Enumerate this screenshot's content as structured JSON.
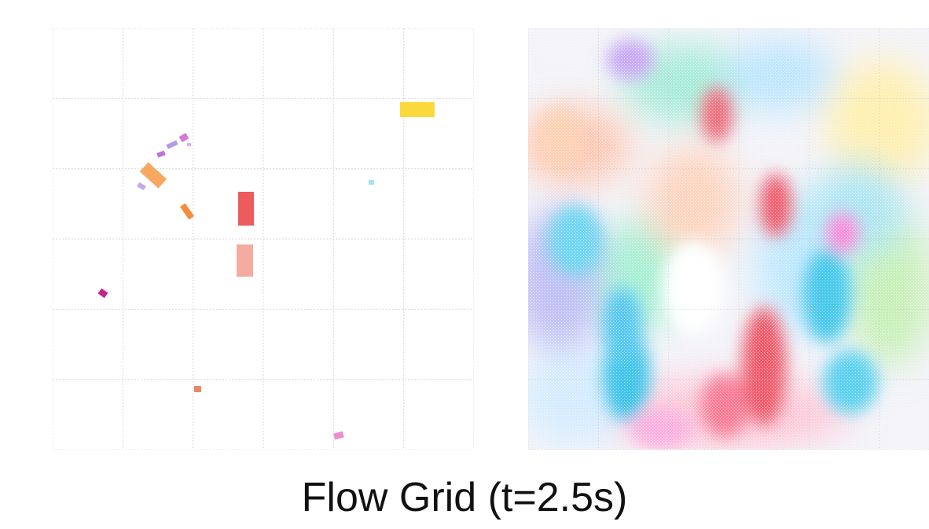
{
  "figure": {
    "caption": "Flow Grid (t=2.5s)"
  },
  "panels": {
    "left": {
      "grid_divisions": 6,
      "grid_color": "#d9d9d9",
      "particle_colors": [
        "#f7a860",
        "#ec5c5c",
        "#f4aba0",
        "#fad93c",
        "#cc1f8e",
        "#f58d40",
        "#b59ae6",
        "#e88a6a",
        "#f08cd0",
        "#a8e2f0"
      ]
    },
    "right": {
      "grid_divisions": 6,
      "field_colors": [
        "#3cc3ea",
        "#f25a6a",
        "#ffc0b0",
        "#b4b4f4",
        "#fff0b4",
        "#a4ecd0",
        "#ffb4e6",
        "#d0f0ff"
      ]
    }
  }
}
